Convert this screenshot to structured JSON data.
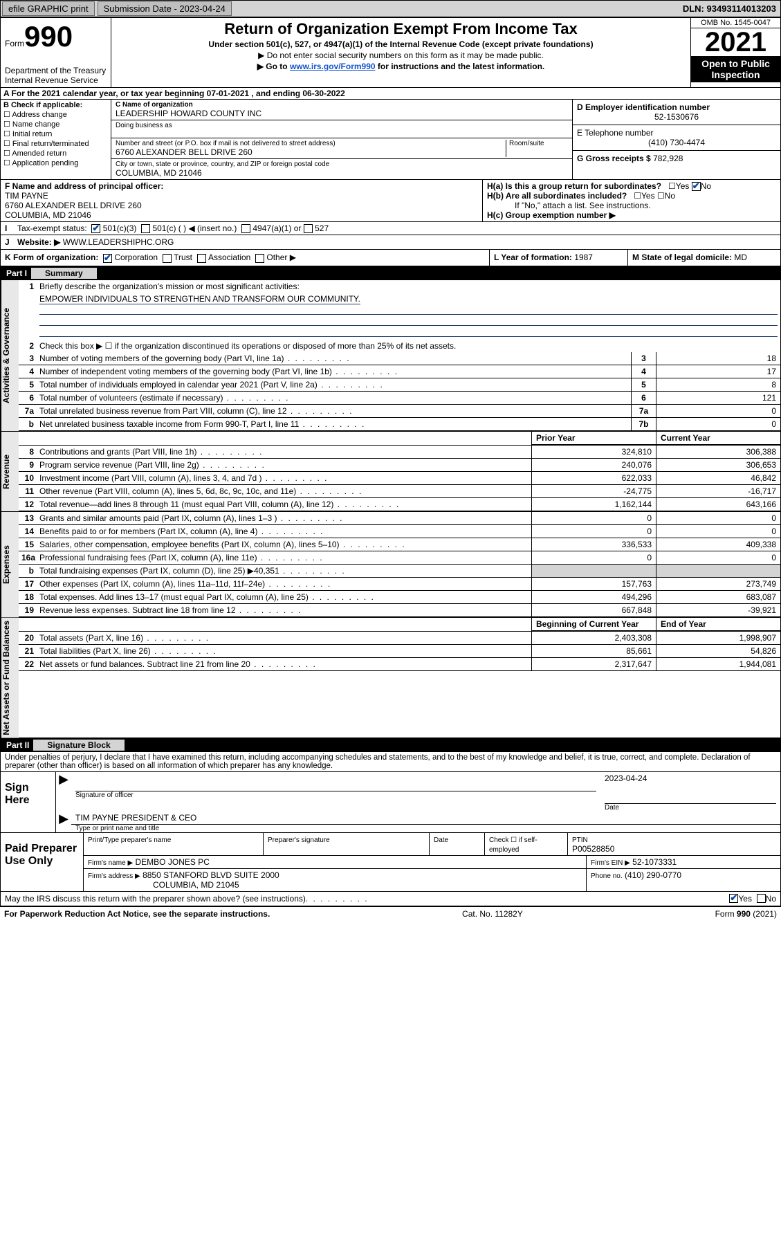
{
  "topbar": {
    "efile": "efile GRAPHIC print",
    "sub_label": "Submission Date - 2023-04-24",
    "dln": "DLN: 93493114013203"
  },
  "header": {
    "form_word": "Form",
    "form_num": "990",
    "dept": "Department of the Treasury Internal Revenue Service",
    "title": "Return of Organization Exempt From Income Tax",
    "subtitle": "Under section 501(c), 527, or 4947(a)(1) of the Internal Revenue Code (except private foundations)",
    "note1": "▶ Do not enter social security numbers on this form as it may be made public.",
    "note2_pre": "▶ Go to ",
    "note2_link": "www.irs.gov/Form990",
    "note2_post": " for instructions and the latest information.",
    "omb": "OMB No. 1545-0047",
    "year": "2021",
    "open": "Open to Public Inspection"
  },
  "rowA": {
    "text": "A For the 2021 calendar year, or tax year beginning 07-01-2021  , and ending 06-30-2022"
  },
  "colB": {
    "title": "B Check if applicable:",
    "opts": [
      "Address change",
      "Name change",
      "Initial return",
      "Final return/terminated",
      "Amended return",
      "Application pending"
    ]
  },
  "colC": {
    "name_lbl": "C Name of organization",
    "name": "LEADERSHIP HOWARD COUNTY INC",
    "dba_lbl": "Doing business as",
    "dba": "",
    "addr_lbl": "Number and street (or P.O. box if mail is not delivered to street address)",
    "room_lbl": "Room/suite",
    "addr": "6760 ALEXANDER BELL DRIVE 260",
    "city_lbl": "City or town, state or province, country, and ZIP or foreign postal code",
    "city": "COLUMBIA, MD  21046"
  },
  "colD": {
    "ein_lbl": "D Employer identification number",
    "ein": "52-1530676",
    "tel_lbl": "E Telephone number",
    "tel": "(410) 730-4474",
    "gross_lbl": "G Gross receipts $",
    "gross": "782,928"
  },
  "secF": {
    "lbl": "F Name and address of principal officer:",
    "name": "TIM PAYNE",
    "addr1": "6760 ALEXANDER BELL DRIVE 260",
    "addr2": "COLUMBIA, MD  21046",
    "ha": "H(a)  Is this a group return for subordinates?",
    "hb": "H(b)  Are all subordinates included?",
    "hb_note": "If \"No,\" attach a list. See instructions.",
    "hc": "H(c)  Group exemption number ▶"
  },
  "lineI": {
    "lbl": "Tax-exempt status:",
    "o1": "501(c)(3)",
    "o2": "501(c) (  ) ◀ (insert no.)",
    "o3": "4947(a)(1) or",
    "o4": "527"
  },
  "lineJ": {
    "lbl": "Website: ▶",
    "val": "WWW.LEADERSHIPHC.ORG"
  },
  "lineK": {
    "lbl": "K Form of organization:",
    "o1": "Corporation",
    "o2": "Trust",
    "o3": "Association",
    "o4": "Other ▶",
    "l_lbl": "L Year of formation:",
    "l_val": "1987",
    "m_lbl": "M State of legal domicile:",
    "m_val": "MD"
  },
  "partI": {
    "num": "Part I",
    "title": "Summary"
  },
  "summary": {
    "q1": "Briefly describe the organization's mission or most significant activities:",
    "q1_ans": "EMPOWER INDIVIDUALS TO STRENGTHEN AND TRANSFORM OUR COMMUNITY.",
    "q2": "Check this box ▶ ☐ if the organization discontinued its operations or disposed of more than 25% of its net assets.",
    "rows_gov": [
      {
        "n": "3",
        "d": "Number of voting members of the governing body (Part VI, line 1a)",
        "box": "3",
        "v": "18"
      },
      {
        "n": "4",
        "d": "Number of independent voting members of the governing body (Part VI, line 1b)",
        "box": "4",
        "v": "17"
      },
      {
        "n": "5",
        "d": "Total number of individuals employed in calendar year 2021 (Part V, line 2a)",
        "box": "5",
        "v": "8"
      },
      {
        "n": "6",
        "d": "Total number of volunteers (estimate if necessary)",
        "box": "6",
        "v": "121"
      },
      {
        "n": "7a",
        "d": "Total unrelated business revenue from Part VIII, column (C), line 12",
        "box": "7a",
        "v": "0"
      },
      {
        "n": "b",
        "d": "Net unrelated business taxable income from Form 990-T, Part I, line 11",
        "box": "7b",
        "v": "0"
      }
    ],
    "col_prior": "Prior Year",
    "col_curr": "Current Year",
    "rows_rev": [
      {
        "n": "8",
        "d": "Contributions and grants (Part VIII, line 1h)",
        "p": "324,810",
        "c": "306,388"
      },
      {
        "n": "9",
        "d": "Program service revenue (Part VIII, line 2g)",
        "p": "240,076",
        "c": "306,653"
      },
      {
        "n": "10",
        "d": "Investment income (Part VIII, column (A), lines 3, 4, and 7d )",
        "p": "622,033",
        "c": "46,842"
      },
      {
        "n": "11",
        "d": "Other revenue (Part VIII, column (A), lines 5, 6d, 8c, 9c, 10c, and 11e)",
        "p": "-24,775",
        "c": "-16,717"
      },
      {
        "n": "12",
        "d": "Total revenue—add lines 8 through 11 (must equal Part VIII, column (A), line 12)",
        "p": "1,162,144",
        "c": "643,166"
      }
    ],
    "rows_exp": [
      {
        "n": "13",
        "d": "Grants and similar amounts paid (Part IX, column (A), lines 1–3 )",
        "p": "0",
        "c": "0"
      },
      {
        "n": "14",
        "d": "Benefits paid to or for members (Part IX, column (A), line 4)",
        "p": "0",
        "c": "0"
      },
      {
        "n": "15",
        "d": "Salaries, other compensation, employee benefits (Part IX, column (A), lines 5–10)",
        "p": "336,533",
        "c": "409,338"
      },
      {
        "n": "16a",
        "d": "Professional fundraising fees (Part IX, column (A), line 11e)",
        "p": "0",
        "c": "0"
      },
      {
        "n": "b",
        "d": "Total fundraising expenses (Part IX, column (D), line 25) ▶40,351",
        "p": "shade",
        "c": "shade"
      },
      {
        "n": "17",
        "d": "Other expenses (Part IX, column (A), lines 11a–11d, 11f–24e)",
        "p": "157,763",
        "c": "273,749"
      },
      {
        "n": "18",
        "d": "Total expenses. Add lines 13–17 (must equal Part IX, column (A), line 25)",
        "p": "494,296",
        "c": "683,087"
      },
      {
        "n": "19",
        "d": "Revenue less expenses. Subtract line 18 from line 12",
        "p": "667,848",
        "c": "-39,921"
      }
    ],
    "col_beg": "Beginning of Current Year",
    "col_end": "End of Year",
    "rows_na": [
      {
        "n": "20",
        "d": "Total assets (Part X, line 16)",
        "p": "2,403,308",
        "c": "1,998,907"
      },
      {
        "n": "21",
        "d": "Total liabilities (Part X, line 26)",
        "p": "85,661",
        "c": "54,826"
      },
      {
        "n": "22",
        "d": "Net assets or fund balances. Subtract line 21 from line 20",
        "p": "2,317,647",
        "c": "1,944,081"
      }
    ]
  },
  "partII": {
    "num": "Part II",
    "title": "Signature Block"
  },
  "sig": {
    "decl": "Under penalties of perjury, I declare that I have examined this return, including accompanying schedules and statements, and to the best of my knowledge and belief, it is true, correct, and complete. Declaration of preparer (other than officer) is based on all information of which preparer has any knowledge.",
    "sign_here": "Sign Here",
    "sig_off": "Signature of officer",
    "date_lbl": "Date",
    "date_val": "2023-04-24",
    "name_title": "TIM PAYNE  PRESIDENT & CEO",
    "name_sub": "Type or print name and title",
    "paid": "Paid Preparer Use Only",
    "pt_name_lbl": "Print/Type preparer's name",
    "prep_sig_lbl": "Preparer's signature",
    "check_lbl": "Check ☐ if self-employed",
    "ptin_lbl": "PTIN",
    "ptin": "P00528850",
    "firm_name_lbl": "Firm's name   ▶",
    "firm_name": "DEMBO JONES PC",
    "firm_ein_lbl": "Firm's EIN ▶",
    "firm_ein": "52-1073331",
    "firm_addr_lbl": "Firm's address ▶",
    "firm_addr1": "8850 STANFORD BLVD SUITE 2000",
    "firm_addr2": "COLUMBIA, MD  21045",
    "phone_lbl": "Phone no.",
    "phone": "(410) 290-0770",
    "discuss": "May the IRS discuss this return with the preparer shown above? (see instructions)"
  },
  "footer": {
    "pra": "For Paperwork Reduction Act Notice, see the separate instructions.",
    "cat": "Cat. No. 11282Y",
    "form": "Form 990 (2021)"
  },
  "colors": {
    "accent": "#1155cc",
    "checked": "#0047ab",
    "shade": "#d4d4d4",
    "ul": "#203864"
  }
}
